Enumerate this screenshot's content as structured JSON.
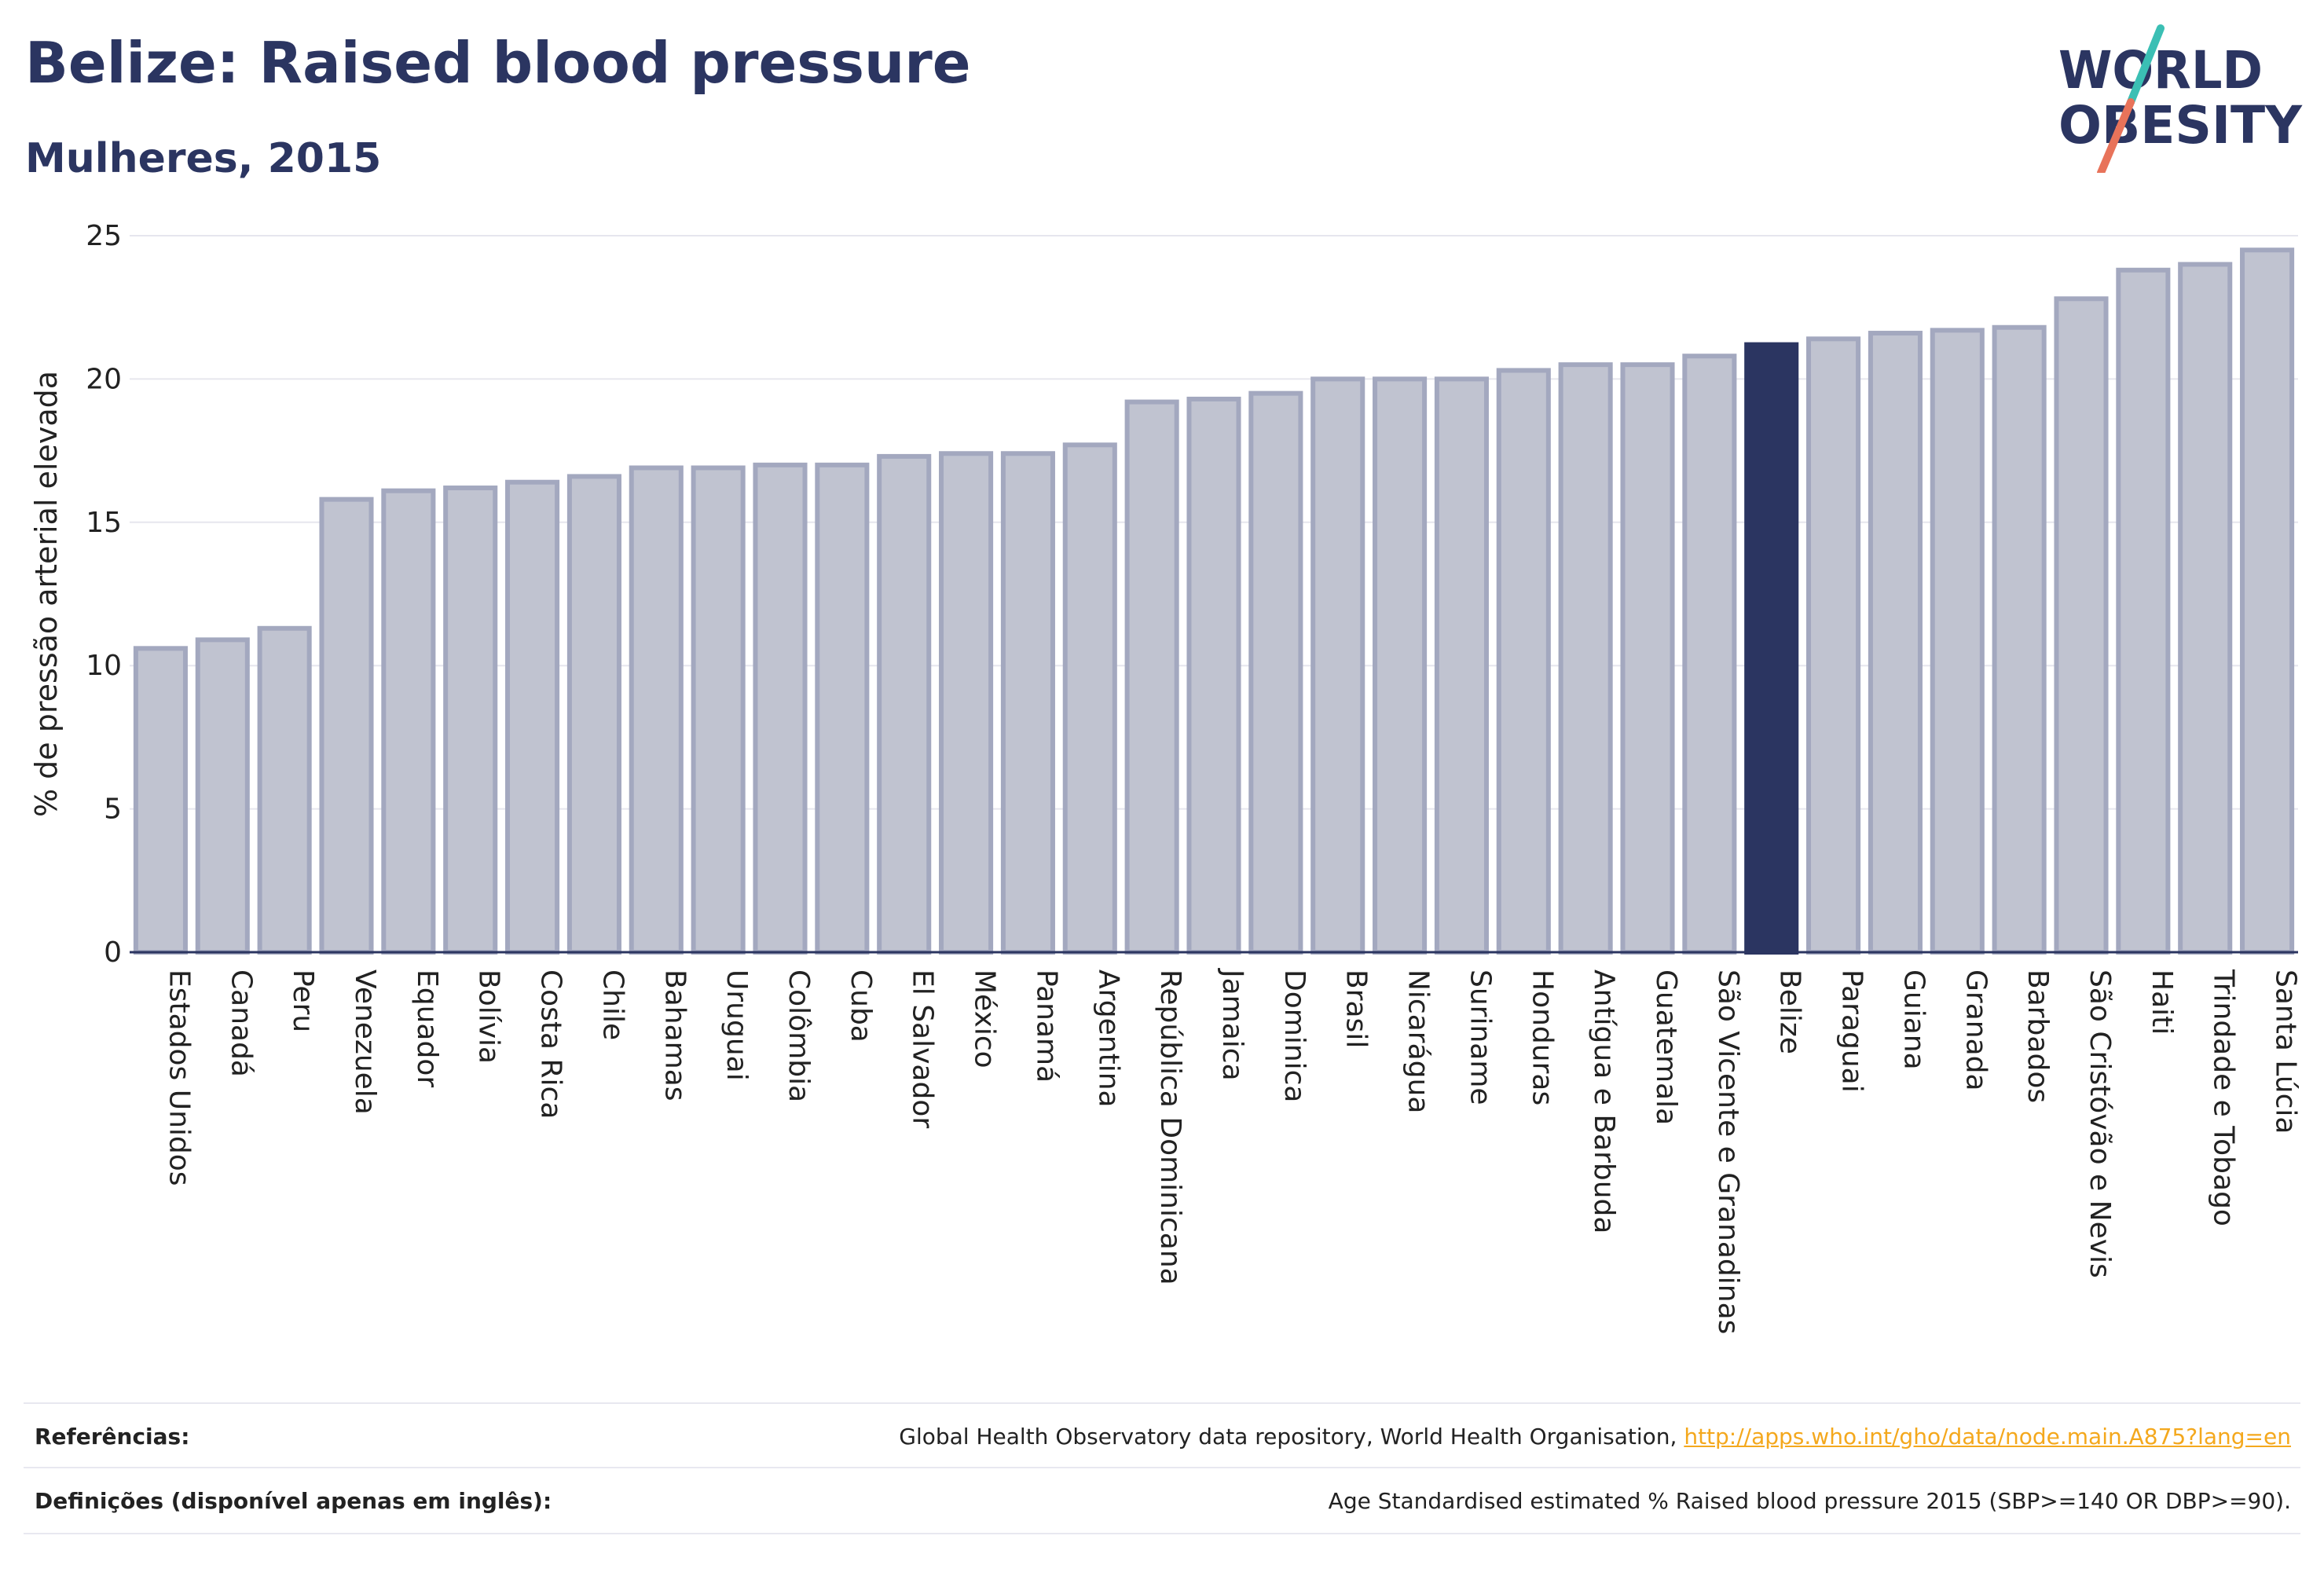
{
  "header": {
    "title": "Belize: Raised blood pressure",
    "subtitle": "Mulheres, 2015"
  },
  "logo": {
    "line1": "WORLD",
    "line2": "OBESITY",
    "colors": {
      "text": "#2b3561",
      "slash_top": "#3bbfb4",
      "slash_bottom": "#e8735a"
    }
  },
  "colors": {
    "bar_fill": "#c0c3d0",
    "bar_stroke": "#a3a8bf",
    "highlight": "#2b3561",
    "grid": "#e6e6ee",
    "title": "#2b3561",
    "link": "#f4a81d"
  },
  "chart_data": {
    "type": "bar",
    "title": "Belize: Raised blood pressure",
    "subtitle": "Mulheres, 2015",
    "ylabel": "% de pressão arterial elevada",
    "xlabel": "",
    "ylim": [
      0,
      25
    ],
    "yticks": [
      0,
      5,
      10,
      15,
      20,
      25
    ],
    "grid": true,
    "highlight_category": "Belize",
    "categories": [
      "Estados Unidos",
      "Canadá",
      "Peru",
      "Venezuela",
      "Equador",
      "Bolívia",
      "Costa Rica",
      "Chile",
      "Bahamas",
      "Uruguai",
      "Colômbia",
      "Cuba",
      "El Salvador",
      "México",
      "Panamá",
      "Argentina",
      "República Dominicana",
      "Jamaica",
      "Dominica",
      "Brasil",
      "Nicarágua",
      "Suriname",
      "Honduras",
      "Antígua e Barbuda",
      "Guatemala",
      "São Vicente e Granadinas",
      "Belize",
      "Paraguai",
      "Guiana",
      "Granada",
      "Barbados",
      "São Cristóvão e Nevis",
      "Haiti",
      "Trindade e Tobago",
      "Santa Lúcia"
    ],
    "values": [
      10.6,
      10.9,
      11.3,
      15.8,
      16.1,
      16.2,
      16.4,
      16.6,
      16.9,
      16.9,
      17.0,
      17.0,
      17.3,
      17.4,
      17.4,
      17.7,
      19.2,
      19.3,
      19.5,
      20.0,
      20.0,
      20.0,
      20.3,
      20.5,
      20.5,
      20.8,
      21.2,
      21.4,
      21.6,
      21.7,
      21.8,
      22.8,
      23.8,
      24.0,
      24.5
    ]
  },
  "footer": {
    "references_label": "Referências:",
    "references_text": "Global Health Observatory data repository, World Health Organisation,",
    "references_link": "http://apps.who.int/gho/data/node.main.A875?lang=en",
    "definitions_label": "Definições (disponível apenas em inglês):",
    "definitions_text": "Age Standardised estimated % Raised blood pressure 2015 (SBP>=140 OR DBP>=90)."
  }
}
